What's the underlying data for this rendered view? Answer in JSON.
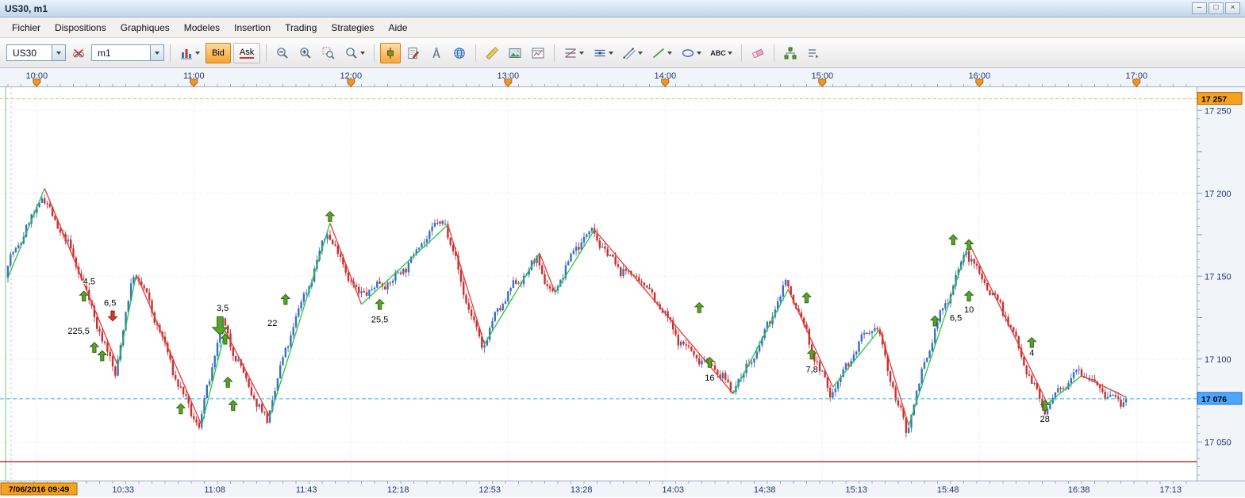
{
  "window": {
    "title": "US30, m1",
    "controls": [
      {
        "name": "minimize",
        "glyph": "–"
      },
      {
        "name": "maximize",
        "glyph": "□"
      },
      {
        "name": "close",
        "glyph": "×"
      }
    ]
  },
  "menu": {
    "items": [
      "Fichier",
      "Dispositions",
      "Graphiques",
      "Modeles",
      "Insertion",
      "Trading",
      "Strategies",
      "Aide"
    ]
  },
  "toolbar": {
    "symbol_value": "US30",
    "timeframe_value": "m1",
    "bid_label": "Bid",
    "ask_label": "Ask",
    "text_tool_label": "ABC",
    "icons": [
      "eyeglasses",
      "bar-chart",
      "zoom-out",
      "zoom-in",
      "zoom-area",
      "magnifier",
      "candlestick",
      "notes",
      "compass",
      "globe",
      "ruler",
      "image",
      "indicator-window",
      "fibonacci",
      "horizontal-line",
      "trendline",
      "line",
      "ellipse",
      "text",
      "eraser",
      "objects-tree",
      "overflow"
    ]
  },
  "chart_data": {
    "type": "candlestick",
    "symbol": "US30",
    "timeframe": "m1",
    "top_axis": [
      {
        "t": 11,
        "label": "10:00"
      },
      {
        "t": 71,
        "label": "11:00"
      },
      {
        "t": 131,
        "label": "12:00"
      },
      {
        "t": 191,
        "label": "13:00"
      },
      {
        "t": 251,
        "label": "14:00"
      },
      {
        "t": 311,
        "label": "15:00"
      },
      {
        "t": 371,
        "label": "16:00"
      },
      {
        "t": 431,
        "label": "17:00"
      }
    ],
    "bottom_axis": [
      {
        "t": 0,
        "label": "7/06/2016 09:49",
        "highlighted": true
      },
      {
        "t": 44,
        "label": "10:33"
      },
      {
        "t": 79,
        "label": "11:08"
      },
      {
        "t": 114,
        "label": "11:43"
      },
      {
        "t": 149,
        "label": "12:18"
      },
      {
        "t": 184,
        "label": "12:53"
      },
      {
        "t": 219,
        "label": "13:28"
      },
      {
        "t": 254,
        "label": "14:03"
      },
      {
        "t": 289,
        "label": "14:38"
      },
      {
        "t": 324,
        "label": "15:13"
      },
      {
        "t": 359,
        "label": "15:48"
      },
      {
        "t": 409,
        "label": "16:38"
      },
      {
        "t": 444,
        "label": "17:13"
      }
    ],
    "price_ticks": [
      {
        "price": 17050,
        "label": "17 050"
      },
      {
        "price": 17100,
        "label": "17 100"
      },
      {
        "price": 17150,
        "label": "17 150"
      },
      {
        "price": 17200,
        "label": "17 200"
      },
      {
        "price": 17250,
        "label": "17 250"
      }
    ],
    "y_top_box": {
      "price": 17257,
      "label": "17 257"
    },
    "current_price": {
      "price": 17076,
      "label": "17 076"
    },
    "support_line_price": 17038,
    "zigzag_pivots": [
      [
        0,
        17149
      ],
      [
        14,
        17203
      ],
      [
        42,
        17096
      ],
      [
        49,
        17151
      ],
      [
        74,
        17060
      ],
      [
        83,
        17117
      ],
      [
        100,
        17065
      ],
      [
        123,
        17182
      ],
      [
        135,
        17133
      ],
      [
        168,
        17181
      ],
      [
        182,
        17109
      ],
      [
        203,
        17164
      ],
      [
        209,
        17140
      ],
      [
        224,
        17178
      ],
      [
        277,
        17079
      ],
      [
        298,
        17142
      ],
      [
        315,
        17083
      ],
      [
        333,
        17118
      ],
      [
        344,
        17060
      ],
      [
        367,
        17170
      ],
      [
        397,
        17073
      ],
      [
        410,
        17090
      ],
      [
        427,
        17077
      ]
    ],
    "arrows": [
      {
        "t": 29,
        "p": 17138,
        "dir": "up"
      },
      {
        "t": 40,
        "p": 17126,
        "dir": "down",
        "color": "red"
      },
      {
        "t": 33,
        "p": 17107,
        "dir": "up"
      },
      {
        "t": 36,
        "p": 17102,
        "dir": "up"
      },
      {
        "t": 66,
        "p": 17070,
        "dir": "up"
      },
      {
        "t": 81,
        "p": 17120,
        "dir": "down",
        "big": true
      },
      {
        "t": 83,
        "p": 17112,
        "dir": "up"
      },
      {
        "t": 84,
        "p": 17086,
        "dir": "up"
      },
      {
        "t": 86,
        "p": 17072,
        "dir": "up"
      },
      {
        "t": 106,
        "p": 17136,
        "dir": "up"
      },
      {
        "t": 123,
        "p": 17186,
        "dir": "up"
      },
      {
        "t": 142,
        "p": 17133,
        "dir": "up"
      },
      {
        "t": 264,
        "p": 17131,
        "dir": "up"
      },
      {
        "t": 268,
        "p": 17098,
        "dir": "up"
      },
      {
        "t": 305,
        "p": 17137,
        "dir": "up"
      },
      {
        "t": 307,
        "p": 17103,
        "dir": "up"
      },
      {
        "t": 354,
        "p": 17123,
        "dir": "up"
      },
      {
        "t": 361,
        "p": 17172,
        "dir": "up"
      },
      {
        "t": 367,
        "p": 17169,
        "dir": "up"
      },
      {
        "t": 367,
        "p": 17138,
        "dir": "up"
      },
      {
        "t": 391,
        "p": 17110,
        "dir": "up"
      },
      {
        "t": 396,
        "p": 17072,
        "dir": "up"
      }
    ],
    "value_labels": [
      {
        "t": 31,
        "p": 17147,
        "text": "4,5"
      },
      {
        "t": 39,
        "p": 17134,
        "text": "6,5"
      },
      {
        "t": 27,
        "p": 17117,
        "text": "225,5"
      },
      {
        "t": 82,
        "p": 17131,
        "text": "3,5"
      },
      {
        "t": 101,
        "p": 17122,
        "text": "22"
      },
      {
        "t": 142,
        "p": 17124,
        "text": "25,5"
      },
      {
        "t": 268,
        "p": 17089,
        "text": "16"
      },
      {
        "t": 307,
        "p": 17094,
        "text": "7,8"
      },
      {
        "t": 367,
        "p": 17130,
        "text": "10"
      },
      {
        "t": 362,
        "p": 17125,
        "text": "6,5"
      },
      {
        "t": 391,
        "p": 17104,
        "text": "4"
      },
      {
        "t": 396,
        "p": 17064,
        "text": "28"
      }
    ],
    "candle_gen": {
      "seed": 7,
      "noise": 2.2,
      "wick": 3,
      "wobble": [
        [
          2.2,
          0.85,
          0
        ],
        [
          4.2,
          0.23,
          1.7
        ]
      ],
      "t_end": 427
    },
    "colors": {
      "bull": "#3a6fc4",
      "bear": "#cc2f2f",
      "zig_up": "#27c63a",
      "zig_down": "#e23b3b",
      "grid": "#dde4ef",
      "axis_text": "#1d3570",
      "current_line": "#35b5e5",
      "current_box": "#4da6ff",
      "top_box": "#f7a21c",
      "marker_orange": "#f7941d",
      "support": "#9c2b2b",
      "arrow_green": "#5ba32b",
      "arrow_red": "#d13b2e"
    }
  }
}
